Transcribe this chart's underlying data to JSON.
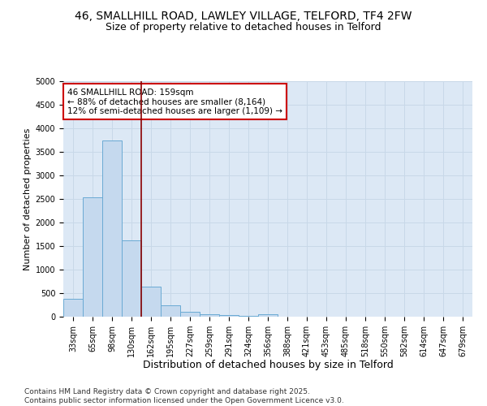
{
  "title_line1": "46, SMALLHILL ROAD, LAWLEY VILLAGE, TELFORD, TF4 2FW",
  "title_line2": "Size of property relative to detached houses in Telford",
  "categories": [
    "33sqm",
    "65sqm",
    "98sqm",
    "130sqm",
    "162sqm",
    "195sqm",
    "227sqm",
    "259sqm",
    "291sqm",
    "324sqm",
    "356sqm",
    "388sqm",
    "421sqm",
    "453sqm",
    "485sqm",
    "518sqm",
    "550sqm",
    "582sqm",
    "614sqm",
    "647sqm",
    "679sqm"
  ],
  "values": [
    380,
    2530,
    3750,
    1620,
    630,
    250,
    110,
    60,
    35,
    20,
    50,
    0,
    0,
    0,
    0,
    0,
    0,
    0,
    0,
    0,
    0
  ],
  "bar_color": "#c5d9ee",
  "bar_edgecolor": "#6aaad4",
  "bar_linewidth": 0.7,
  "vline_x": 3.52,
  "vline_color": "#8b0000",
  "vline_linewidth": 1.2,
  "annotation_text": "46 SMALLHILL ROAD: 159sqm\n← 88% of detached houses are smaller (8,164)\n12% of semi-detached houses are larger (1,109) →",
  "annotation_box_edgecolor": "#cc0000",
  "annotation_box_facecolor": "white",
  "annotation_fontsize": 7.5,
  "xlabel": "Distribution of detached houses by size in Telford",
  "ylabel": "Number of detached properties",
  "ylim": [
    0,
    5000
  ],
  "yticks": [
    0,
    500,
    1000,
    1500,
    2000,
    2500,
    3000,
    3500,
    4000,
    4500,
    5000
  ],
  "grid_color": "#c8d8e8",
  "bg_color": "#dce8f5",
  "footer_text": "Contains HM Land Registry data © Crown copyright and database right 2025.\nContains public sector information licensed under the Open Government Licence v3.0.",
  "title_fontsize": 10,
  "subtitle_fontsize": 9,
  "xlabel_fontsize": 9,
  "ylabel_fontsize": 8,
  "tick_fontsize": 7,
  "footer_fontsize": 6.5
}
